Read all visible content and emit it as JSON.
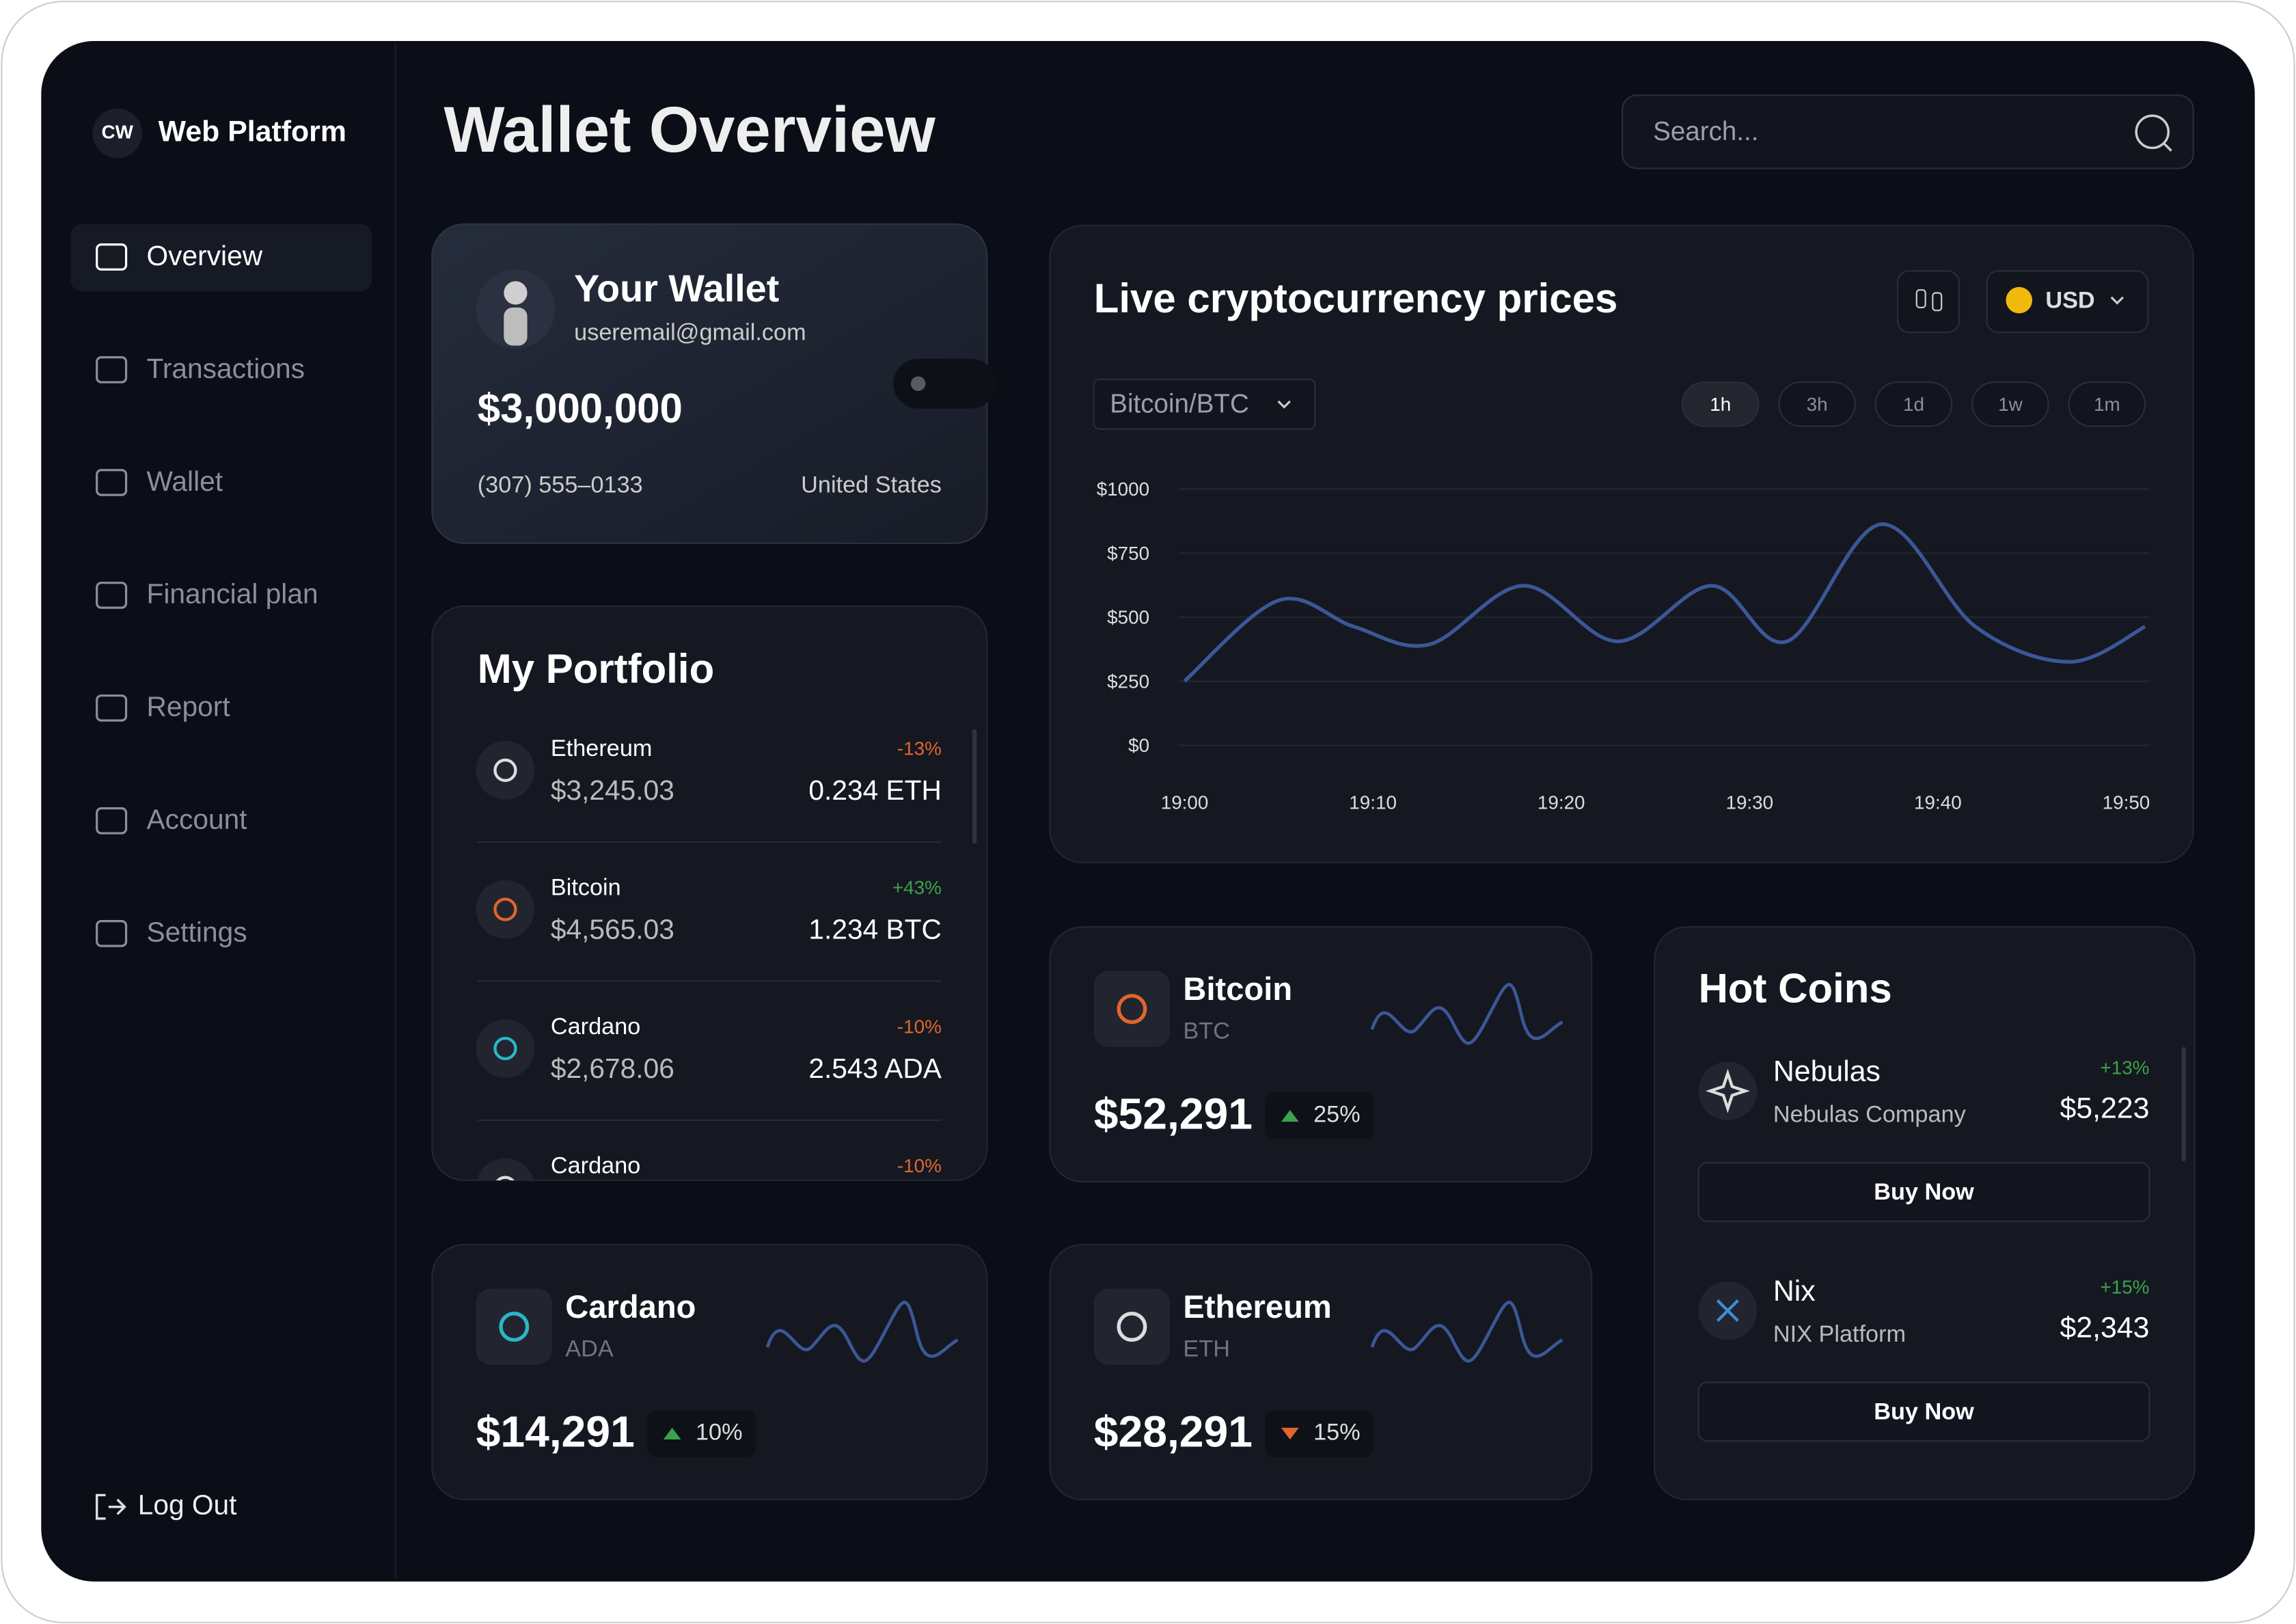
{
  "brand": {
    "logo": "CW",
    "name": "Web Platform"
  },
  "nav": [
    "Overview",
    "Transactions",
    "Wallet",
    "Financial plan",
    "Report",
    "Account",
    "Settings"
  ],
  "logout": "Log Out",
  "header": {
    "title": "Wallet Overview",
    "search_placeholder": "Search..."
  },
  "wallet": {
    "title": "Your Wallet",
    "email": "useremail@gmail.com",
    "balance": "$3,000,000",
    "phone": "(307) 555–0133",
    "country": "United States"
  },
  "portfolio": {
    "title": "My Portfolio",
    "items": [
      {
        "name": "Ethereum",
        "value": "$3,245.03",
        "change": "-13%",
        "amount": "0.234 ETH"
      },
      {
        "name": "Bitcoin",
        "value": "$4,565.03",
        "change": "+43%",
        "amount": "1.234 BTC"
      },
      {
        "name": "Cardano",
        "value": "$2,678.06",
        "change": "-10%",
        "amount": "2.543 ADA"
      },
      {
        "name": "Cardano",
        "change": "-10%"
      }
    ]
  },
  "chart_data": {
    "type": "line",
    "title": "Live cryptocurrency prices",
    "currency": "USD",
    "pair": "Bitcoin/BTC",
    "ranges": [
      "1h",
      "3h",
      "1d",
      "1w",
      "1m"
    ],
    "x": [
      1140,
      1145,
      1149,
      1153,
      1158,
      1163,
      1168,
      1172,
      1177,
      1182,
      1187,
      1191
    ],
    "values": [
      251,
      566,
      463,
      394,
      623,
      406,
      623,
      406,
      863,
      463,
      326,
      463
    ],
    "color": "#3b5797",
    "xlim": [
      1140,
      1191
    ],
    "xticks": [
      {
        "value": 1140,
        "label": "19:00"
      },
      {
        "value": 1150,
        "label": "19:10"
      },
      {
        "value": 1160,
        "label": "19:20"
      },
      {
        "value": 1170,
        "label": "19:30"
      },
      {
        "value": 1180,
        "label": "19:40"
      },
      {
        "value": 1190,
        "label": "19:50"
      }
    ],
    "ylim": [
      0,
      1000
    ],
    "yticks": [
      {
        "value": 0,
        "label": "$0"
      },
      {
        "value": 250,
        "label": "$250"
      },
      {
        "value": 500,
        "label": "$500"
      },
      {
        "value": 750,
        "label": "$750"
      },
      {
        "value": 1000,
        "label": "$1000"
      }
    ],
    "grid": true
  },
  "coins": [
    {
      "name": "Bitcoin",
      "symbol": "BTC",
      "price": "$52,291",
      "change": "25%",
      "direction": "up"
    },
    {
      "name": "Cardano",
      "symbol": "ADA",
      "price": "$14,291",
      "change": "10%",
      "direction": "up"
    },
    {
      "name": "Ethereum",
      "symbol": "ETH",
      "price": "$28,291",
      "change": "15%",
      "direction": "down"
    }
  ],
  "hot_coins": {
    "title": "Hot Coins",
    "button": "Buy Now",
    "items": [
      {
        "name": "Nebulas",
        "company": "Nebulas Company",
        "change": "+13%",
        "price": "$5,223"
      },
      {
        "name": "Nix",
        "company": "NIX Platform",
        "change": "+15%",
        "price": "$2,343"
      }
    ]
  }
}
